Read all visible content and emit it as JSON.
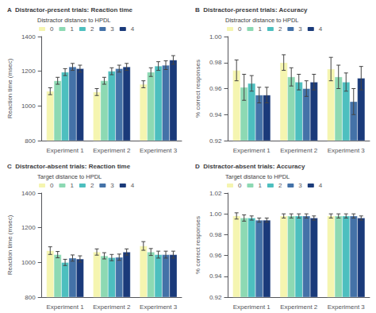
{
  "chart_data": [
    {
      "type": "bar",
      "title": "A  Distractor-present trials: Reaction time",
      "ylabel": "Reaction time (msec)",
      "legend_title": "Distractor distance to HPDL",
      "categories": [
        "Experiment 1",
        "Experiment 2",
        "Experiment 3"
      ],
      "series": [
        {
          "name": "0",
          "color": "#f5f5b0",
          "values": [
            1085,
            1080,
            1125
          ],
          "errors": [
            20,
            20,
            20
          ]
        },
        {
          "name": "1",
          "color": "#8dd9b3",
          "values": [
            1145,
            1145,
            1195
          ],
          "errors": [
            20,
            20,
            25
          ]
        },
        {
          "name": "2",
          "color": "#4dbfbf",
          "values": [
            1195,
            1200,
            1230
          ],
          "errors": [
            20,
            20,
            25
          ]
        },
        {
          "name": "3",
          "color": "#4472a8",
          "values": [
            1225,
            1215,
            1235
          ],
          "errors": [
            20,
            20,
            25
          ]
        },
        {
          "name": "4",
          "color": "#1a3a7a",
          "values": [
            1215,
            1225,
            1265
          ],
          "errors": [
            20,
            20,
            25
          ]
        }
      ],
      "ylim": [
        800,
        1400
      ],
      "yticks": [
        800,
        1000,
        1200,
        1400
      ],
      "grid": false,
      "legend": "upper left"
    },
    {
      "type": "bar",
      "title": "B  Distractor-present trials: Accuracy",
      "ylabel": "% correct responses",
      "legend_title": "Distractor distance to HPDL",
      "categories": [
        "Experiment 1",
        "Experiment 2",
        "Experiment 3"
      ],
      "series": [
        {
          "name": "0",
          "color": "#f5f5b0",
          "values": [
            0.974,
            0.98,
            0.975
          ],
          "errors": [
            0.008,
            0.006,
            0.009
          ]
        },
        {
          "name": "1",
          "color": "#8dd9b3",
          "values": [
            0.961,
            0.969,
            0.969
          ],
          "errors": [
            0.01,
            0.007,
            0.009
          ]
        },
        {
          "name": "2",
          "color": "#4dbfbf",
          "values": [
            0.964,
            0.965,
            0.965
          ],
          "errors": [
            0.006,
            0.006,
            0.007
          ]
        },
        {
          "name": "3",
          "color": "#4472a8",
          "values": [
            0.955,
            0.96,
            0.95
          ],
          "errors": [
            0.006,
            0.006,
            0.01
          ]
        },
        {
          "name": "4",
          "color": "#1a3a7a",
          "values": [
            0.955,
            0.965,
            0.968
          ],
          "errors": [
            0.006,
            0.006,
            0.009
          ]
        }
      ],
      "ylim": [
        0.92,
        1.0
      ],
      "yticks": [
        0.92,
        0.94,
        0.96,
        0.98,
        {
          "value": 1.0,
          "label": "1.00"
        }
      ],
      "grid": false,
      "legend": "upper left"
    },
    {
      "type": "bar",
      "title": "C  Distractor-absent trials: Reaction time",
      "ylabel": "Reaction time (msec)",
      "legend_title": "Target distance to HPDL",
      "categories": [
        "Experiment 1",
        "Experiment 2",
        "Experiment 3"
      ],
      "series": [
        {
          "name": "0",
          "color": "#f5f5b0",
          "values": [
            1068,
            1060,
            1095
          ],
          "errors": [
            22,
            18,
            25
          ]
        },
        {
          "name": "1",
          "color": "#8dd9b3",
          "values": [
            1045,
            1038,
            1060
          ],
          "errors": [
            18,
            18,
            20
          ]
        },
        {
          "name": "2",
          "color": "#4dbfbf",
          "values": [
            1000,
            1028,
            1045
          ],
          "errors": [
            18,
            18,
            20
          ]
        },
        {
          "name": "3",
          "color": "#4472a8",
          "values": [
            1025,
            1030,
            1045
          ],
          "errors": [
            18,
            18,
            20
          ]
        },
        {
          "name": "4",
          "color": "#1a3a7a",
          "values": [
            1020,
            1060,
            1045
          ],
          "errors": [
            18,
            18,
            20
          ]
        }
      ],
      "ylim": [
        800,
        1400
      ],
      "yticks": [
        800,
        1000,
        1200,
        1400
      ],
      "grid": false,
      "legend": "upper left"
    },
    {
      "type": "bar",
      "title": "D  Distractor-absent trials: Accuracy",
      "ylabel": "% correct responses",
      "legend_title": "Target distance to HPDL",
      "categories": [
        "Experiment 1",
        "Experiment 2",
        "Experiment 3"
      ],
      "series": [
        {
          "name": "0",
          "color": "#f5f5b0",
          "values": [
            0.998,
            0.998,
            0.998
          ],
          "errors": [
            0.003,
            0.002,
            0.002
          ]
        },
        {
          "name": "1",
          "color": "#8dd9b3",
          "values": [
            0.996,
            0.998,
            0.998
          ],
          "errors": [
            0.003,
            0.002,
            0.002
          ]
        },
        {
          "name": "2",
          "color": "#4dbfbf",
          "values": [
            0.996,
            0.998,
            0.998
          ],
          "errors": [
            0.002,
            0.002,
            0.002
          ]
        },
        {
          "name": "3",
          "color": "#4472a8",
          "values": [
            0.994,
            0.998,
            0.998
          ],
          "errors": [
            0.002,
            0.002,
            0.002
          ]
        },
        {
          "name": "4",
          "color": "#1a3a7a",
          "values": [
            0.994,
            0.996,
            0.996
          ],
          "errors": [
            0.002,
            0.002,
            0.002
          ]
        }
      ],
      "ylim": [
        0.92,
        1.02
      ],
      "yticks": [
        0.92,
        0.94,
        0.96,
        0.98,
        {
          "value": 1.0,
          "label": "1.00"
        },
        1.02
      ],
      "grid": false,
      "legend": "upper left"
    }
  ]
}
